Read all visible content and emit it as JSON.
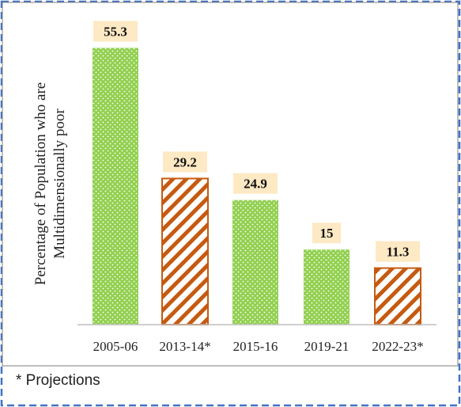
{
  "colors": {
    "frame_border": "#4472c4",
    "green_fill": "#92d050",
    "green_dot": "#ffffff",
    "orange_stroke": "#c55a11",
    "label_bg": "#fde9c3",
    "axis": "#bfbfbf"
  },
  "footnote": "* Projections",
  "chart_data": {
    "type": "bar",
    "categories": [
      "2005-06",
      "2013-14*",
      "2015-16",
      "2019-21",
      "2022-23*"
    ],
    "values": [
      55.3,
      29.2,
      24.9,
      15,
      11.3
    ],
    "value_labels": [
      "55.3",
      "29.2",
      "24.9",
      "15",
      "11.3"
    ],
    "patterns": [
      "dotted-green",
      "hatched-orange",
      "dotted-green",
      "dotted-green",
      "hatched-orange"
    ],
    "ylabel_lines": [
      "Percentage of Population who are",
      "Multidimensionally poor"
    ],
    "ylim": [
      0,
      60
    ],
    "grid": false,
    "legend": false
  }
}
